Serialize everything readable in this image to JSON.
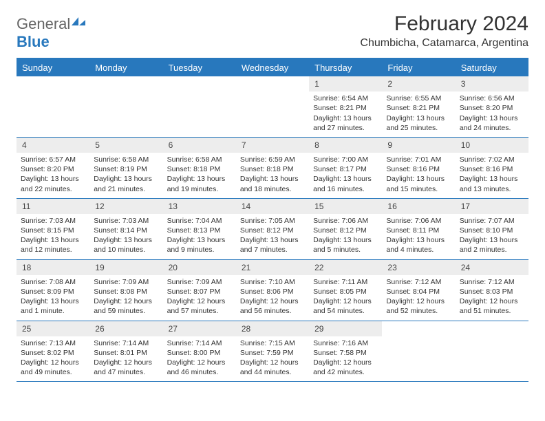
{
  "brand": {
    "part1": "General",
    "part2": "Blue"
  },
  "title": "February 2024",
  "location": "Chumbicha, Catamarca, Argentina",
  "colors": {
    "header_bg": "#2878bd",
    "header_text": "#ffffff",
    "daynum_bg": "#ededed",
    "border": "#2878bd",
    "text": "#333333"
  },
  "weekdays": [
    "Sunday",
    "Monday",
    "Tuesday",
    "Wednesday",
    "Thursday",
    "Friday",
    "Saturday"
  ],
  "weeks": [
    [
      null,
      null,
      null,
      null,
      {
        "day": "1",
        "sunrise": "6:54 AM",
        "sunset": "8:21 PM",
        "daylight": "13 hours and 27 minutes."
      },
      {
        "day": "2",
        "sunrise": "6:55 AM",
        "sunset": "8:21 PM",
        "daylight": "13 hours and 25 minutes."
      },
      {
        "day": "3",
        "sunrise": "6:56 AM",
        "sunset": "8:20 PM",
        "daylight": "13 hours and 24 minutes."
      }
    ],
    [
      {
        "day": "4",
        "sunrise": "6:57 AM",
        "sunset": "8:20 PM",
        "daylight": "13 hours and 22 minutes."
      },
      {
        "day": "5",
        "sunrise": "6:58 AM",
        "sunset": "8:19 PM",
        "daylight": "13 hours and 21 minutes."
      },
      {
        "day": "6",
        "sunrise": "6:58 AM",
        "sunset": "8:18 PM",
        "daylight": "13 hours and 19 minutes."
      },
      {
        "day": "7",
        "sunrise": "6:59 AM",
        "sunset": "8:18 PM",
        "daylight": "13 hours and 18 minutes."
      },
      {
        "day": "8",
        "sunrise": "7:00 AM",
        "sunset": "8:17 PM",
        "daylight": "13 hours and 16 minutes."
      },
      {
        "day": "9",
        "sunrise": "7:01 AM",
        "sunset": "8:16 PM",
        "daylight": "13 hours and 15 minutes."
      },
      {
        "day": "10",
        "sunrise": "7:02 AM",
        "sunset": "8:16 PM",
        "daylight": "13 hours and 13 minutes."
      }
    ],
    [
      {
        "day": "11",
        "sunrise": "7:03 AM",
        "sunset": "8:15 PM",
        "daylight": "13 hours and 12 minutes."
      },
      {
        "day": "12",
        "sunrise": "7:03 AM",
        "sunset": "8:14 PM",
        "daylight": "13 hours and 10 minutes."
      },
      {
        "day": "13",
        "sunrise": "7:04 AM",
        "sunset": "8:13 PM",
        "daylight": "13 hours and 9 minutes."
      },
      {
        "day": "14",
        "sunrise": "7:05 AM",
        "sunset": "8:12 PM",
        "daylight": "13 hours and 7 minutes."
      },
      {
        "day": "15",
        "sunrise": "7:06 AM",
        "sunset": "8:12 PM",
        "daylight": "13 hours and 5 minutes."
      },
      {
        "day": "16",
        "sunrise": "7:06 AM",
        "sunset": "8:11 PM",
        "daylight": "13 hours and 4 minutes."
      },
      {
        "day": "17",
        "sunrise": "7:07 AM",
        "sunset": "8:10 PM",
        "daylight": "13 hours and 2 minutes."
      }
    ],
    [
      {
        "day": "18",
        "sunrise": "7:08 AM",
        "sunset": "8:09 PM",
        "daylight": "13 hours and 1 minute."
      },
      {
        "day": "19",
        "sunrise": "7:09 AM",
        "sunset": "8:08 PM",
        "daylight": "12 hours and 59 minutes."
      },
      {
        "day": "20",
        "sunrise": "7:09 AM",
        "sunset": "8:07 PM",
        "daylight": "12 hours and 57 minutes."
      },
      {
        "day": "21",
        "sunrise": "7:10 AM",
        "sunset": "8:06 PM",
        "daylight": "12 hours and 56 minutes."
      },
      {
        "day": "22",
        "sunrise": "7:11 AM",
        "sunset": "8:05 PM",
        "daylight": "12 hours and 54 minutes."
      },
      {
        "day": "23",
        "sunrise": "7:12 AM",
        "sunset": "8:04 PM",
        "daylight": "12 hours and 52 minutes."
      },
      {
        "day": "24",
        "sunrise": "7:12 AM",
        "sunset": "8:03 PM",
        "daylight": "12 hours and 51 minutes."
      }
    ],
    [
      {
        "day": "25",
        "sunrise": "7:13 AM",
        "sunset": "8:02 PM",
        "daylight": "12 hours and 49 minutes."
      },
      {
        "day": "26",
        "sunrise": "7:14 AM",
        "sunset": "8:01 PM",
        "daylight": "12 hours and 47 minutes."
      },
      {
        "day": "27",
        "sunrise": "7:14 AM",
        "sunset": "8:00 PM",
        "daylight": "12 hours and 46 minutes."
      },
      {
        "day": "28",
        "sunrise": "7:15 AM",
        "sunset": "7:59 PM",
        "daylight": "12 hours and 44 minutes."
      },
      {
        "day": "29",
        "sunrise": "7:16 AM",
        "sunset": "7:58 PM",
        "daylight": "12 hours and 42 minutes."
      },
      null,
      null
    ]
  ],
  "labels": {
    "sunrise": "Sunrise: ",
    "sunset": "Sunset: ",
    "daylight": "Daylight: "
  }
}
